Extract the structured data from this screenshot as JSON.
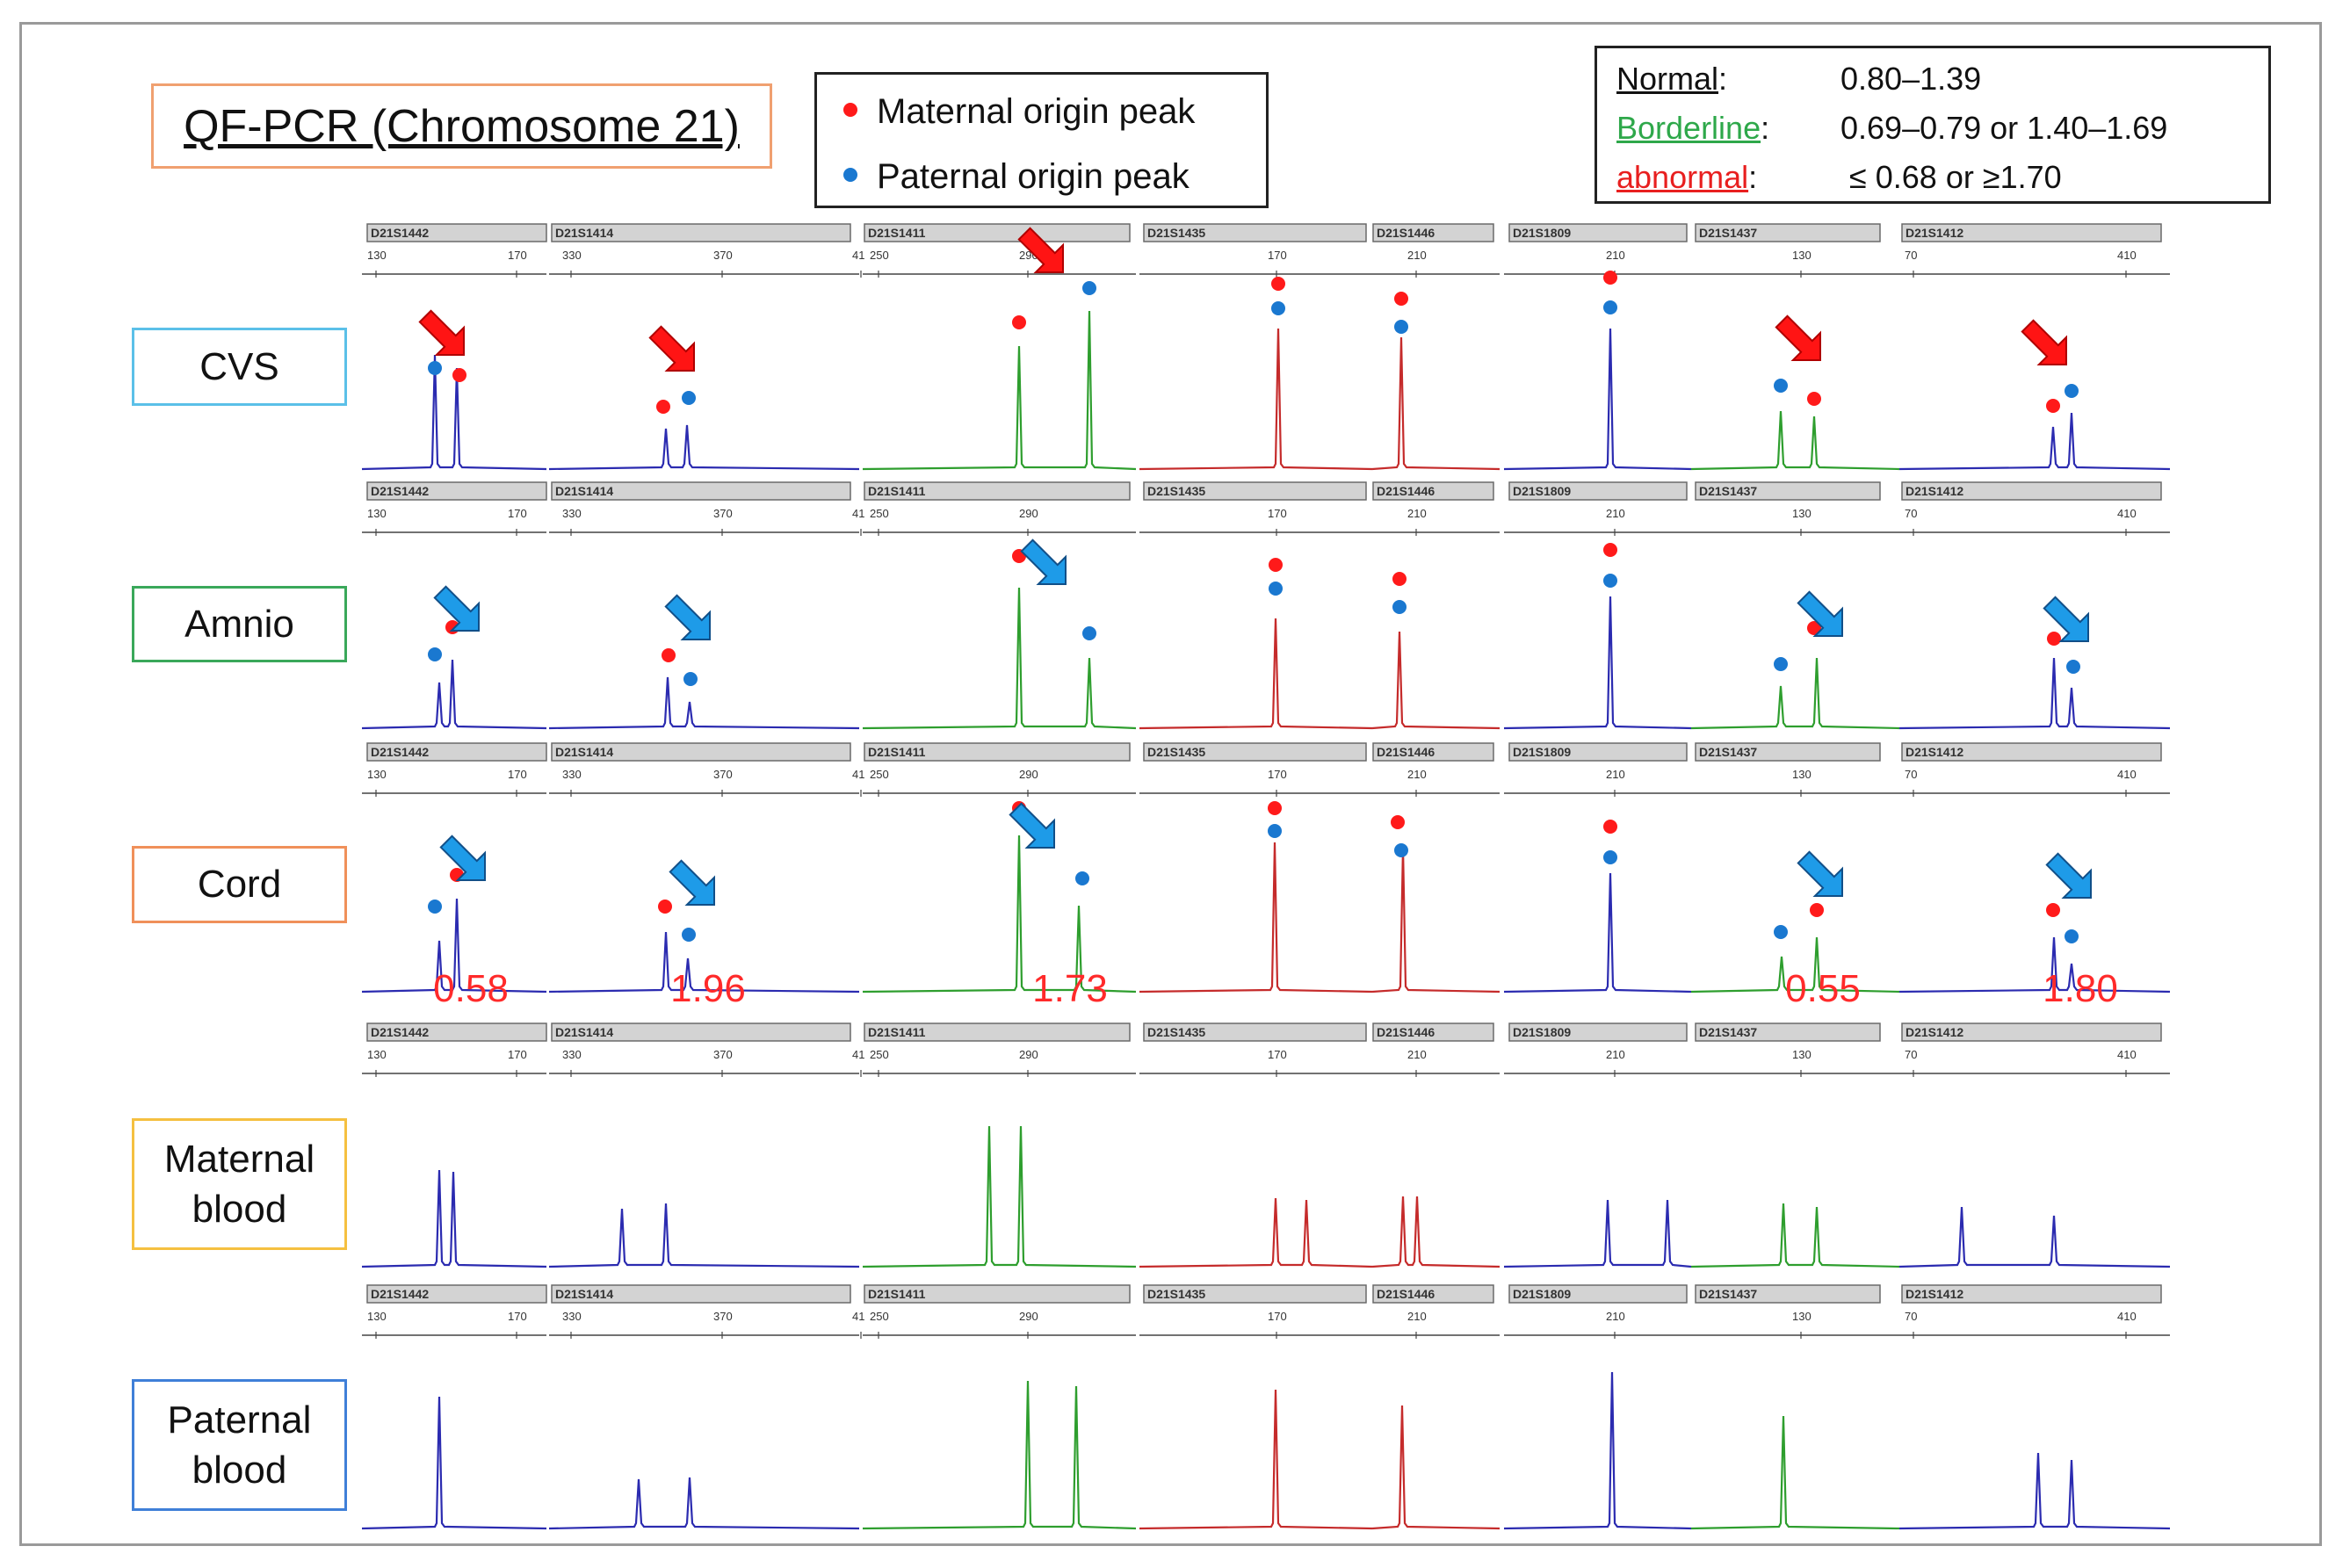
{
  "title": "QF-PCR (Chromosome 21)",
  "legend": {
    "maternal": {
      "label": "Maternal origin peak",
      "color": "#ff1a1a"
    },
    "paternal": {
      "label": "Paternal origin peak",
      "color": "#1a78d0"
    }
  },
  "reference": [
    {
      "name": "Normal",
      "colon": " :",
      "range": "0.80–1.39",
      "color": "#111111"
    },
    {
      "name": "Borderline",
      "colon": ":",
      "range": "0.69–0.79 or 1.40–1.69",
      "color": "#2ea84a"
    },
    {
      "name": "abnormal",
      "colon": ":",
      "range": "≤ 0.68 or ≥1.70",
      "color": "#e81f1f"
    }
  ],
  "markers": [
    {
      "name": "D21S1442",
      "ticks": [
        "130",
        "170"
      ],
      "color": "#3a3aa8"
    },
    {
      "name": "D21S1414",
      "ticks": [
        "330",
        "370",
        "41"
      ],
      "color": "#3a3aa8"
    },
    {
      "name": "D21S1411",
      "ticks": [
        "250",
        "290"
      ],
      "color": "#2e9e2e"
    },
    {
      "name": "D21S1435",
      "ticks": [
        "170"
      ],
      "color": "#c52b2b"
    },
    {
      "name": "D21S1446",
      "ticks": [
        "210"
      ],
      "color": "#c52b2b"
    },
    {
      "name": "D21S1809",
      "ticks": [
        "210"
      ],
      "color": "#2020b0"
    },
    {
      "name": "D21S1437",
      "ticks": [
        "130"
      ],
      "color": "#2e9e2e"
    },
    {
      "name": "D21S1412",
      "ticks": [
        "70",
        "410"
      ],
      "color": "#3a3aa8"
    }
  ],
  "samples": [
    {
      "label": "CVS",
      "border": "#5bc0e8",
      "arrow_color": "#ff1414"
    },
    {
      "label": "Amnio",
      "border": "#3aa85a",
      "arrow_color": "#1e9be8"
    },
    {
      "label": "Cord",
      "border": "#f0905a",
      "arrow_color": "#1e9be8"
    },
    {
      "label": "Maternal blood",
      "border": "#f5c040"
    },
    {
      "label": "Paternal blood",
      "border": "#3f7fd8"
    }
  ],
  "cord_ratios": [
    "0.58",
    "1.96",
    "1.73",
    "0.55",
    "1.80"
  ]
}
